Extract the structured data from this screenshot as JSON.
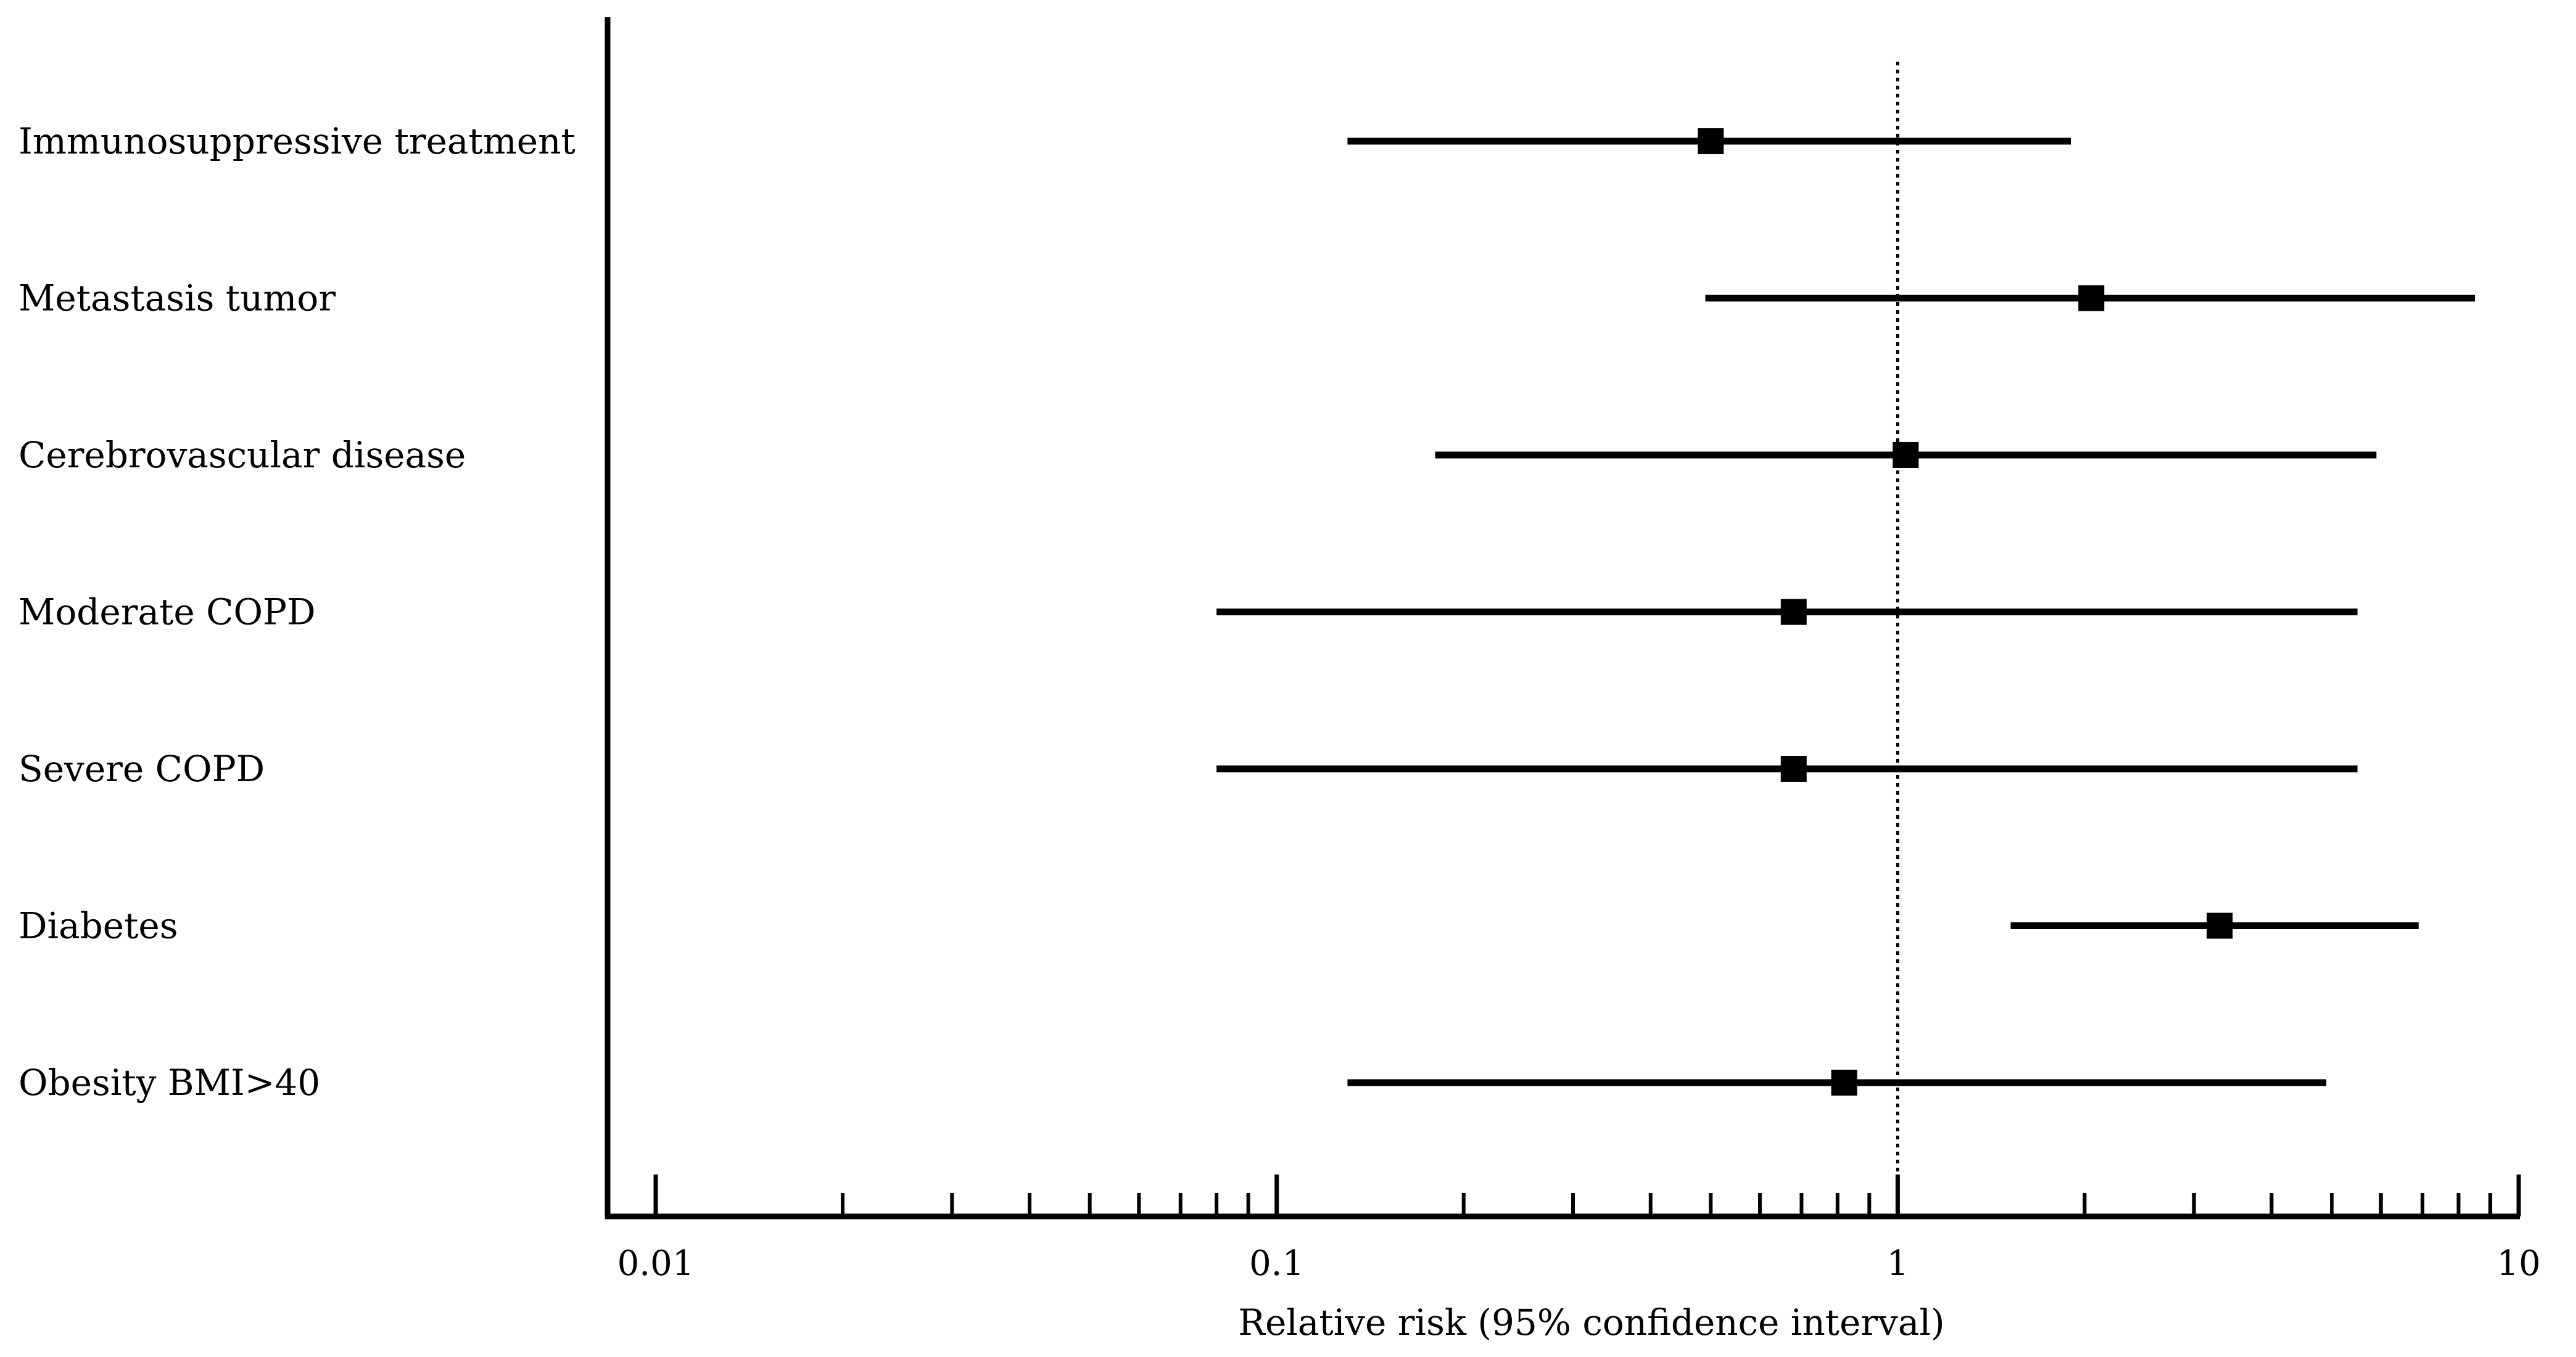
{
  "chart_data": {
    "type": "forest",
    "title": "",
    "xlabel": "Relative risk (95% confidence interval)",
    "x_scale": "log",
    "xlim": [
      0.0085,
      11.5
    ],
    "reference_line": 1,
    "x_tick_labels": [
      {
        "value": 0.01,
        "label": "0.01"
      },
      {
        "value": 0.1,
        "label": "0.1"
      },
      {
        "value": 1,
        "label": "1"
      },
      {
        "value": 10,
        "label": "10"
      }
    ],
    "minor_ticks": [
      0.02,
      0.03,
      0.04,
      0.05,
      0.06,
      0.07,
      0.08,
      0.09,
      0.2,
      0.3,
      0.4,
      0.5,
      0.6,
      0.7,
      0.8,
      0.9,
      2,
      3,
      4,
      5,
      6,
      7,
      8,
      9
    ],
    "rows": [
      {
        "label": "Immunosuppressive treatment",
        "estimate": 0.5,
        "lower": 0.13,
        "upper": 1.9
      },
      {
        "label": "Metastasis tumor",
        "estimate": 2.05,
        "lower": 0.49,
        "upper": 8.5
      },
      {
        "label": "Cerebrovascular disease",
        "estimate": 1.03,
        "lower": 0.18,
        "upper": 5.9
      },
      {
        "label": "Moderate COPD",
        "estimate": 0.68,
        "lower": 0.08,
        "upper": 5.5
      },
      {
        "label": "Severe COPD",
        "estimate": 0.68,
        "lower": 0.08,
        "upper": 5.5
      },
      {
        "label": "Diabetes",
        "estimate": 3.3,
        "lower": 1.52,
        "upper": 6.9
      },
      {
        "label": "Obesity BMI>40",
        "estimate": 0.82,
        "lower": 0.13,
        "upper": 4.9
      }
    ]
  }
}
